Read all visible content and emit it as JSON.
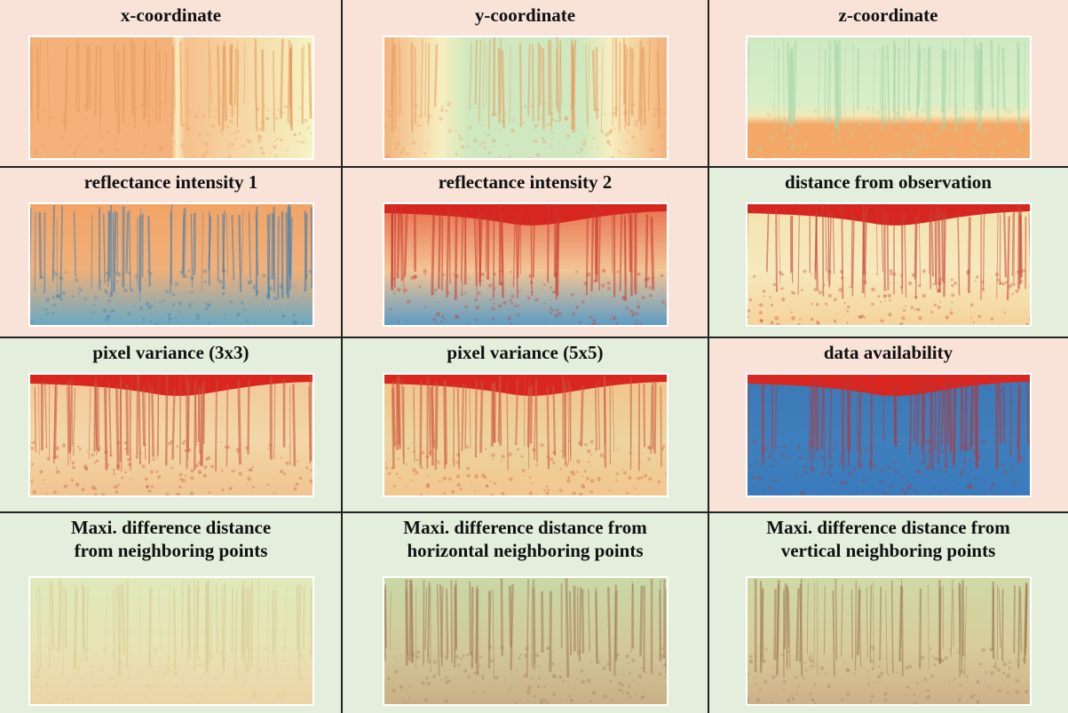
{
  "panels": [
    {
      "title": [
        "x-coordinate"
      ]
    },
    {
      "title": [
        "y-coordinate"
      ]
    },
    {
      "title": [
        "z-coordinate"
      ]
    },
    {
      "title": [
        "reflectance intensity 1"
      ]
    },
    {
      "title": [
        "reflectance intensity 2"
      ]
    },
    {
      "title": [
        "distance from observation"
      ]
    },
    {
      "title": [
        "pixel variance (3x3)"
      ]
    },
    {
      "title": [
        "pixel variance (5x5)"
      ]
    },
    {
      "title": [
        "data availability"
      ]
    },
    {
      "title": [
        "Maxi. difference distance",
        "from neighboring points"
      ]
    },
    {
      "title": [
        "Maxi. difference distance from",
        "horizontal neighboring points"
      ]
    },
    {
      "title": [
        "Maxi. difference distance from",
        "vertical neighboring points"
      ]
    }
  ]
}
